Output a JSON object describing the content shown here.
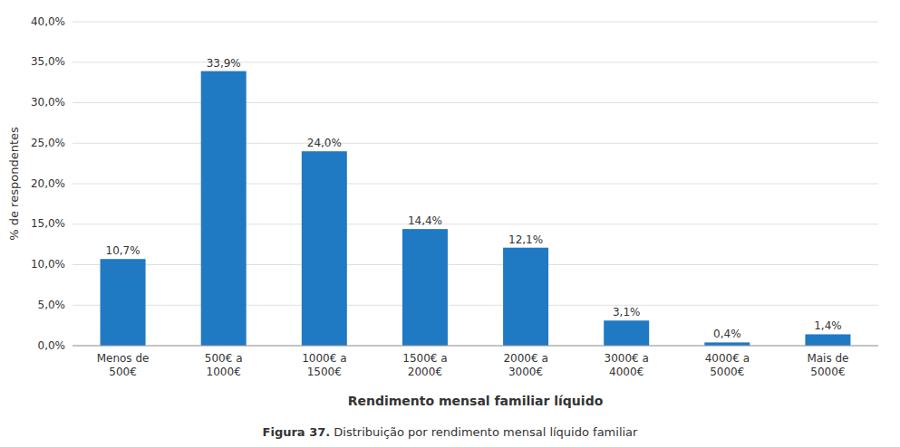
{
  "chart_data": {
    "type": "bar",
    "categories": [
      "Menos de\n500€",
      "500€ a\n1000€",
      "1000€ a\n1500€",
      "1500€ a\n2000€",
      "2000€ a\n3000€",
      "3000€ a\n4000€",
      "4000€ a\n5000€",
      "Mais de\n5000€"
    ],
    "values": [
      10.7,
      33.9,
      24.0,
      14.4,
      12.1,
      3.1,
      0.4,
      1.4
    ],
    "value_labels": [
      "10,7%",
      "33,9%",
      "24,0%",
      "14,4%",
      "12,1%",
      "3,1%",
      "0,4%",
      "1,4%"
    ],
    "data_labels": true,
    "color": "#2079C3",
    "y_label": "% de respondentes",
    "x_label": "Rendimento mensal familiar líquido",
    "ylim": [
      0,
      40
    ],
    "yticks": [
      {
        "value": 0,
        "label": "0,0%"
      },
      {
        "value": 5,
        "label": "5,0%"
      },
      {
        "value": 10,
        "label": "10,0%"
      },
      {
        "value": 15,
        "label": "15,0%"
      },
      {
        "value": 20,
        "label": "20,0%"
      },
      {
        "value": 25,
        "label": "25,0%"
      },
      {
        "value": 30,
        "label": "30,0%"
      },
      {
        "value": 35,
        "label": "35,0%"
      },
      {
        "value": 40,
        "label": "40,0%"
      }
    ],
    "grid": true,
    "annotations": [
      "Figura 37.",
      " Distribuição por rendimento mensal líquido familiar"
    ]
  }
}
